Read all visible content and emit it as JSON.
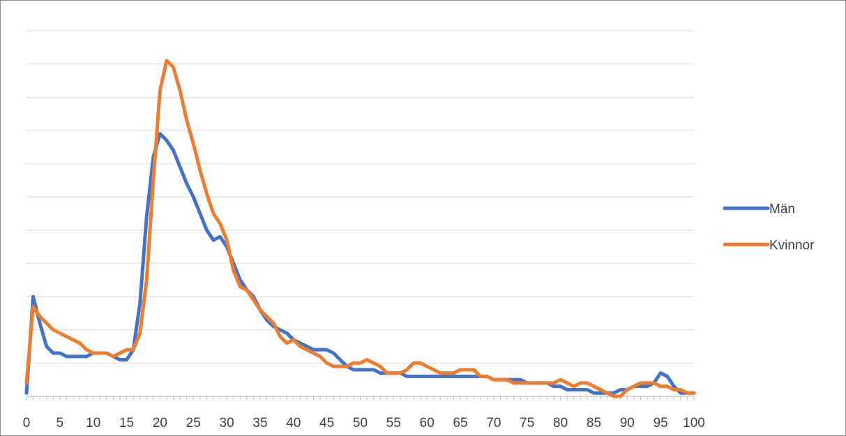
{
  "chart_data": {
    "type": "line",
    "title": "",
    "xlabel": "",
    "ylabel": "",
    "xlim": [
      0,
      100
    ],
    "ylim": [
      0,
      110
    ],
    "xticks": [
      0,
      5,
      10,
      15,
      20,
      25,
      30,
      35,
      40,
      45,
      50,
      55,
      60,
      65,
      70,
      75,
      80,
      85,
      90,
      95,
      100
    ],
    "ygrid_step": 10,
    "grid": true,
    "legend_position": "right",
    "x": [
      0,
      1,
      2,
      3,
      4,
      5,
      6,
      7,
      8,
      9,
      10,
      11,
      12,
      13,
      14,
      15,
      16,
      17,
      18,
      19,
      20,
      21,
      22,
      23,
      24,
      25,
      26,
      27,
      28,
      29,
      30,
      31,
      32,
      33,
      34,
      35,
      36,
      37,
      38,
      39,
      40,
      41,
      42,
      43,
      44,
      45,
      46,
      47,
      48,
      49,
      50,
      51,
      52,
      53,
      54,
      55,
      56,
      57,
      58,
      59,
      60,
      61,
      62,
      63,
      64,
      65,
      66,
      67,
      68,
      69,
      70,
      71,
      72,
      73,
      74,
      75,
      76,
      77,
      78,
      79,
      80,
      81,
      82,
      83,
      84,
      85,
      86,
      87,
      88,
      89,
      90,
      91,
      92,
      93,
      94,
      95,
      96,
      97,
      98,
      99,
      100
    ],
    "series": [
      {
        "name": "Män",
        "color": "#4472C4",
        "values": [
          1,
          30,
          22,
          15,
          13,
          13,
          12,
          12,
          12,
          12,
          13,
          13,
          13,
          12,
          11,
          11,
          14,
          28,
          54,
          72,
          79,
          77,
          74,
          69,
          64,
          60,
          55,
          50,
          47,
          48,
          45,
          40,
          35,
          32,
          30,
          26,
          23,
          21,
          20,
          19,
          17,
          16,
          15,
          14,
          14,
          14,
          13,
          11,
          9,
          8,
          8,
          8,
          8,
          7,
          7,
          7,
          7,
          6,
          6,
          6,
          6,
          6,
          6,
          6,
          6,
          6,
          6,
          6,
          6,
          6,
          5,
          5,
          5,
          5,
          5,
          4,
          4,
          4,
          4,
          3,
          3,
          2,
          2,
          2,
          2,
          1,
          1,
          1,
          1,
          2,
          2,
          3,
          3,
          3,
          4,
          7,
          6,
          3,
          1,
          1,
          1
        ]
      },
      {
        "name": "Kvinnor",
        "color": "#ED7D31",
        "values": [
          4,
          27,
          24,
          22,
          20,
          19,
          18,
          17,
          16,
          14,
          13,
          13,
          13,
          12,
          13,
          14,
          14,
          19,
          35,
          65,
          92,
          101,
          99,
          92,
          83,
          76,
          68,
          61,
          55,
          52,
          47,
          38,
          33,
          32,
          29,
          26,
          24,
          22,
          18,
          16,
          17,
          15,
          14,
          13,
          12,
          10,
          9,
          9,
          9,
          10,
          10,
          11,
          10,
          9,
          7,
          7,
          7,
          8,
          10,
          10,
          9,
          8,
          7,
          7,
          7,
          8,
          8,
          8,
          6,
          6,
          5,
          5,
          5,
          4,
          4,
          4,
          4,
          4,
          4,
          4,
          5,
          4,
          3,
          4,
          4,
          3,
          2,
          1,
          0,
          0,
          2,
          3,
          4,
          4,
          4,
          3,
          3,
          2,
          2,
          1,
          1
        ]
      }
    ]
  }
}
